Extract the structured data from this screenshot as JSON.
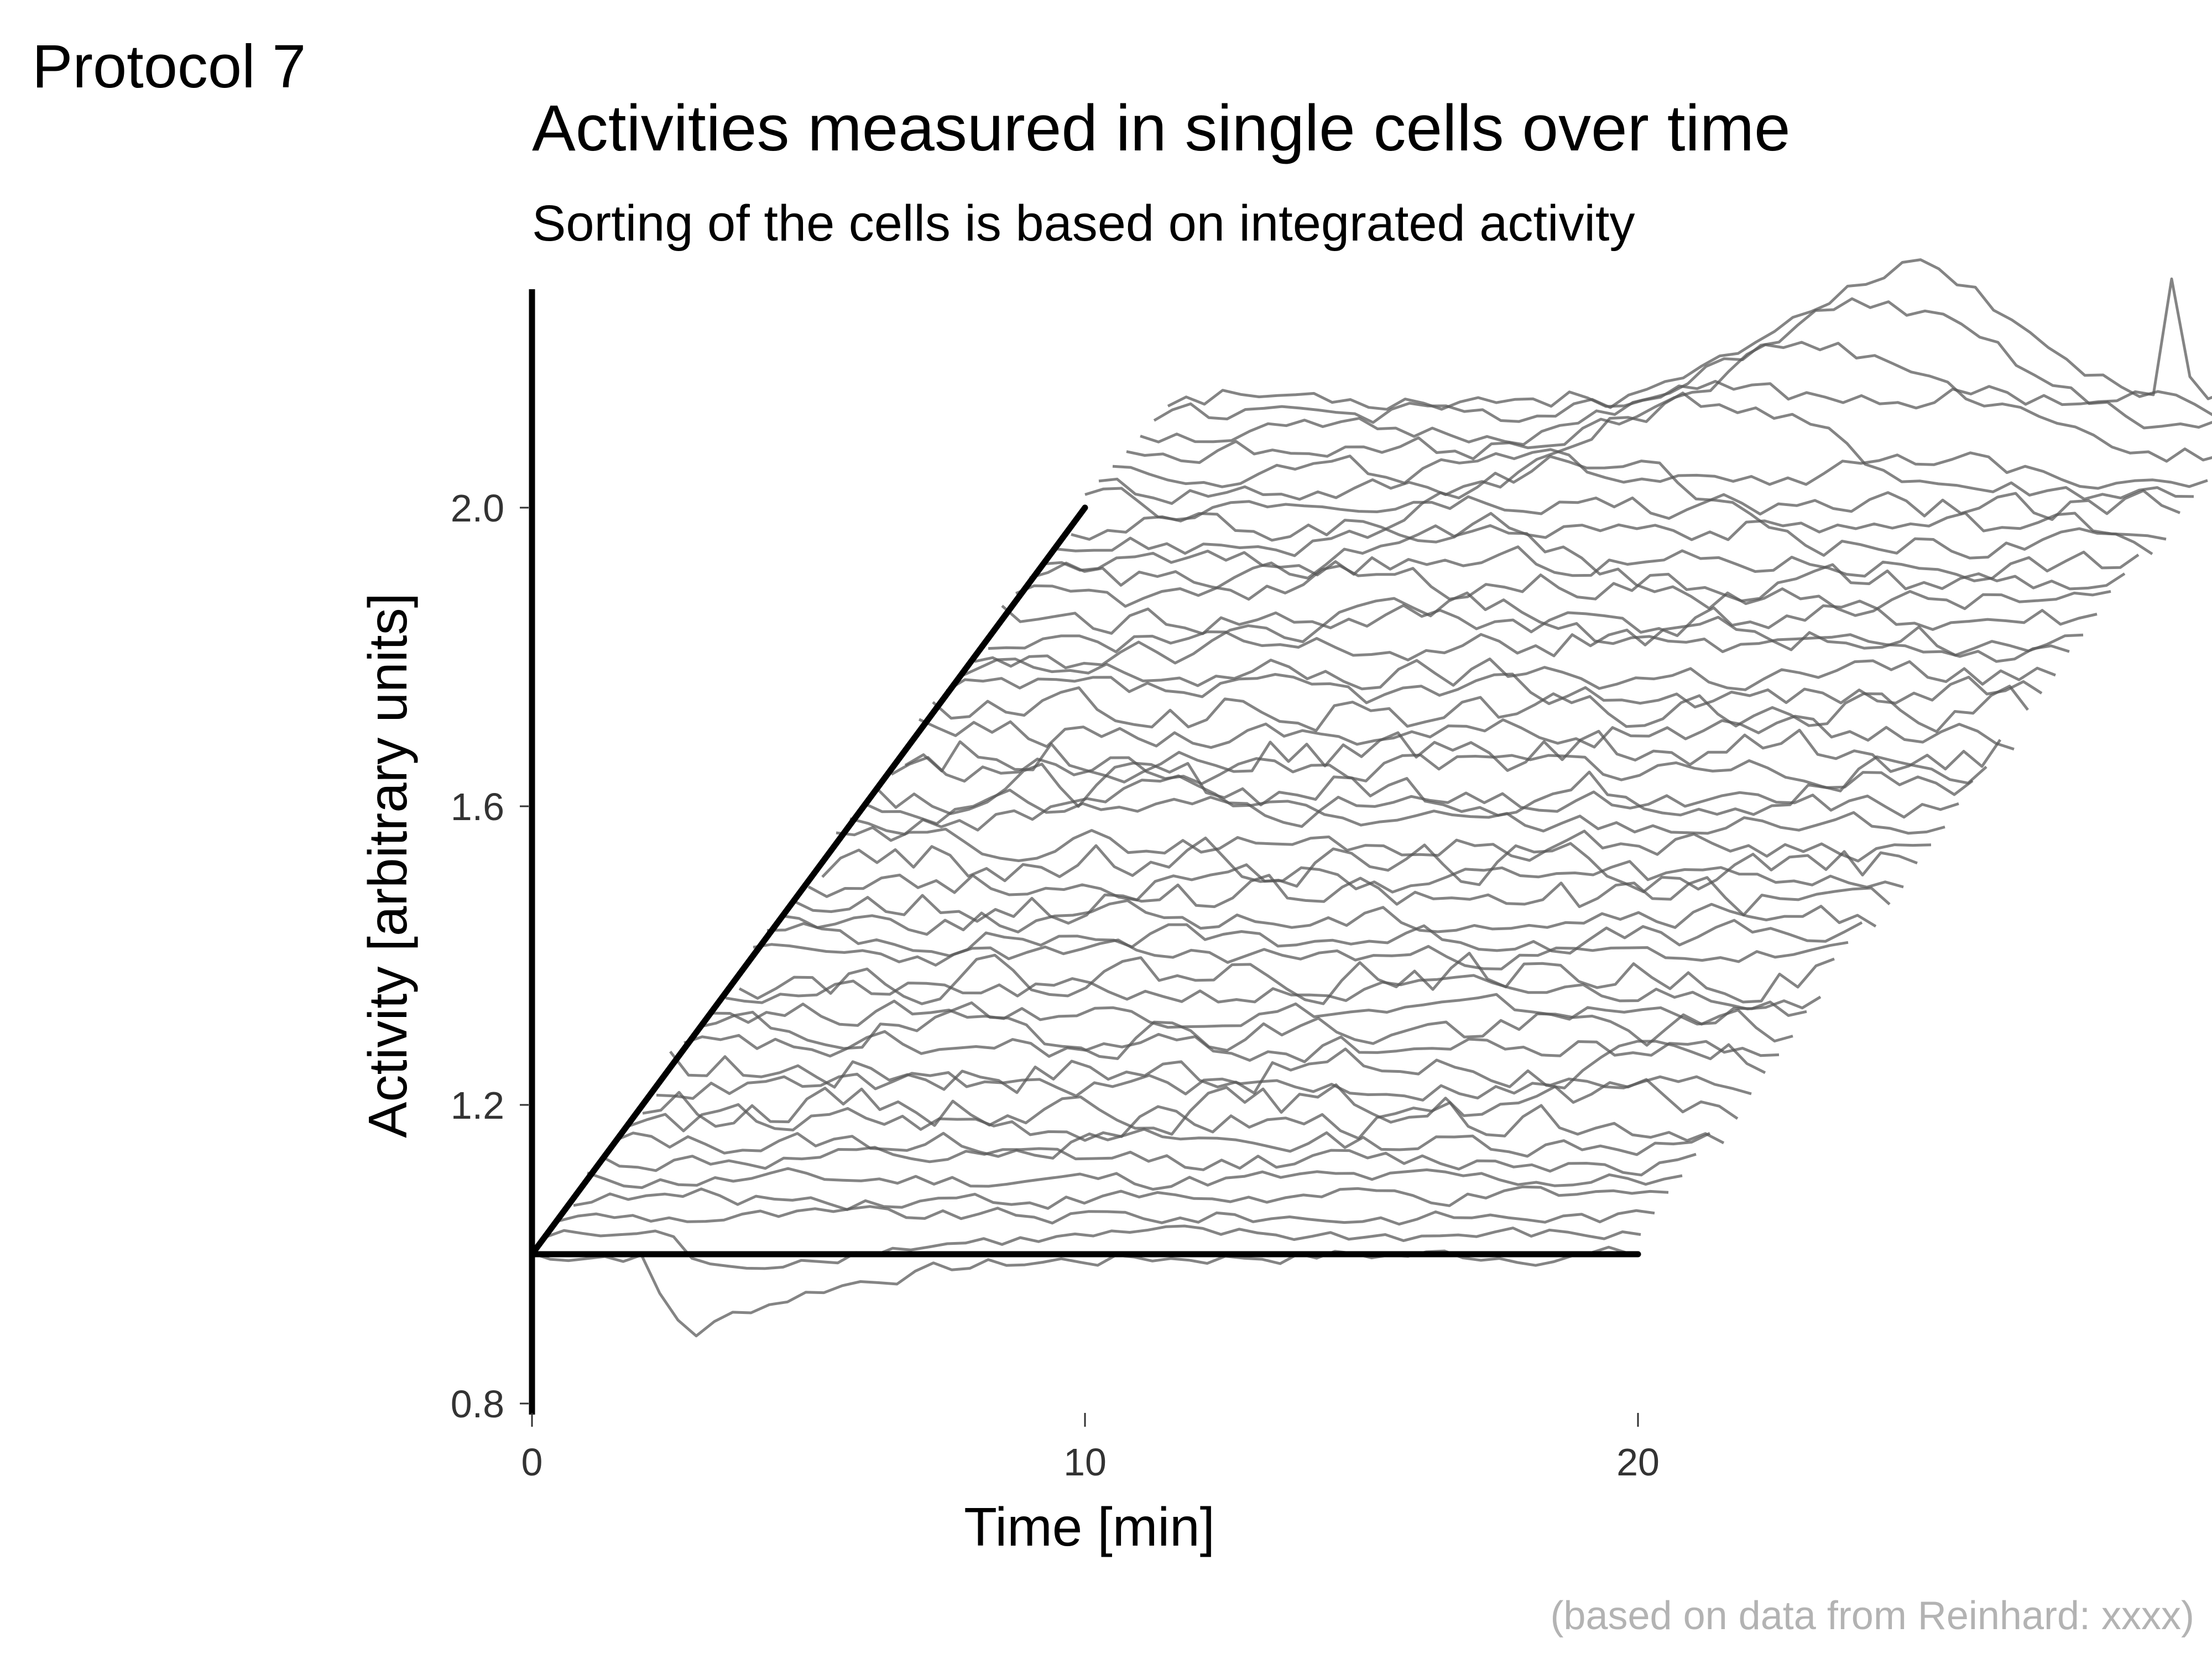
{
  "tag": "Protocol 7",
  "caption": "(based on data from Reinhard: xxxx)",
  "colors": {
    "trace": "#555555",
    "axis": "#000000",
    "caption": "#b3b3b3"
  },
  "chart_data": {
    "type": "line",
    "title": "Activities measured in single cells over time",
    "subtitle": "Sorting of the cells is based on integrated activity",
    "xlabel": "Time [min]",
    "ylabel": "Activity [arbitrary units]",
    "xlim": [
      0,
      30
    ],
    "ylim": [
      0.8,
      2.3
    ],
    "x_ticks": [
      0,
      10,
      20
    ],
    "x_tick_labels": [
      "0",
      "10",
      "20"
    ],
    "y_ticks": [
      0.8,
      1.2,
      1.6,
      2.0
    ],
    "y_tick_labels": [
      "0.8",
      "1.2",
      "1.6",
      "2.0"
    ],
    "grid": false,
    "legend": "none",
    "sample_interval_min": 0.33,
    "duration_min": 20,
    "vertical_offset_per_cell": 0.025,
    "horizontal_offset_per_cell_min": 0.25,
    "guides": [
      {
        "name": "baseline",
        "x": [
          0,
          20
        ],
        "y": [
          1.0,
          1.0
        ]
      },
      {
        "name": "offset-diagonal",
        "x": [
          0,
          10
        ],
        "y": [
          1.0,
          2.0
        ]
      }
    ],
    "series": [
      {
        "pattern": "dip",
        "baseline": 1.0,
        "event_t": 2.2,
        "event_amp": -0.14,
        "event_width": 0.9,
        "noise": 0.006
      },
      {
        "pattern": "dip",
        "baseline": 1.0,
        "event_t": 2.5,
        "event_amp": -0.07,
        "event_width": 0.8,
        "noise": 0.006
      },
      {
        "pattern": "flat",
        "baseline": 1.0,
        "noise": 0.006
      },
      {
        "pattern": "flat",
        "baseline": 1.0,
        "noise": 0.007
      },
      {
        "pattern": "flat",
        "baseline": 1.0,
        "noise": 0.007
      },
      {
        "pattern": "flat",
        "baseline": 1.0,
        "noise": 0.008
      },
      {
        "pattern": "flat",
        "baseline": 1.0,
        "noise": 0.009
      },
      {
        "pattern": "noisy",
        "baseline": 1.0,
        "noise": 0.012
      },
      {
        "pattern": "noisy",
        "baseline": 1.0,
        "noise": 0.014
      },
      {
        "pattern": "flat",
        "baseline": 1.0,
        "noise": 0.009
      },
      {
        "pattern": "noisy",
        "baseline": 1.0,
        "noise": 0.016
      },
      {
        "pattern": "flat",
        "baseline": 1.0,
        "noise": 0.01
      },
      {
        "pattern": "noisy",
        "baseline": 1.0,
        "noise": 0.014
      },
      {
        "pattern": "flat",
        "baseline": 1.0,
        "noise": 0.009
      },
      {
        "pattern": "flat",
        "baseline": 1.0,
        "noise": 0.009
      },
      {
        "pattern": "noisy",
        "baseline": 1.0,
        "noise": 0.015
      },
      {
        "pattern": "flat",
        "baseline": 1.0,
        "noise": 0.008
      },
      {
        "pattern": "flat",
        "baseline": 1.0,
        "noise": 0.01
      },
      {
        "pattern": "flat",
        "baseline": 1.0,
        "noise": 0.01
      },
      {
        "pattern": "noisy",
        "baseline": 1.0,
        "noise": 0.015
      },
      {
        "pattern": "flat",
        "baseline": 1.0,
        "noise": 0.011
      },
      {
        "pattern": "noisy",
        "baseline": 1.0,
        "noise": 0.016
      },
      {
        "pattern": "flat",
        "baseline": 1.0,
        "noise": 0.01
      },
      {
        "pattern": "bump",
        "baseline": 1.0,
        "event_t": 6.0,
        "event_amp": 0.05,
        "event_width": 1.6,
        "noise": 0.009
      },
      {
        "pattern": "flat",
        "baseline": 1.0,
        "noise": 0.01
      },
      {
        "pattern": "noisy",
        "baseline": 1.0,
        "noise": 0.016
      },
      {
        "pattern": "flat",
        "baseline": 1.0,
        "noise": 0.011
      },
      {
        "pattern": "noisy",
        "baseline": 1.0,
        "noise": 0.017
      },
      {
        "pattern": "flat",
        "baseline": 1.0,
        "noise": 0.011
      },
      {
        "pattern": "noisy",
        "baseline": 1.0,
        "noise": 0.015
      },
      {
        "pattern": "flat",
        "baseline": 1.0,
        "noise": 0.011
      },
      {
        "pattern": "flat",
        "baseline": 1.0,
        "noise": 0.012
      },
      {
        "pattern": "bump",
        "baseline": 1.0,
        "event_t": 8.5,
        "event_amp": 0.07,
        "event_width": 2.2,
        "noise": 0.01
      },
      {
        "pattern": "flat",
        "baseline": 1.0,
        "noise": 0.012
      },
      {
        "pattern": "flat",
        "baseline": 1.0,
        "noise": 0.012
      },
      {
        "pattern": "bump",
        "baseline": 1.0,
        "event_t": 8.0,
        "event_amp": 0.1,
        "event_width": 2.0,
        "noise": 0.01
      },
      {
        "pattern": "flat",
        "baseline": 1.0,
        "noise": 0.012
      },
      {
        "pattern": "spike",
        "baseline": 1.0,
        "event_t": 20.5,
        "event_amp": 0.12,
        "event_width": 0.15,
        "noise": 0.01
      },
      {
        "pattern": "bump",
        "baseline": 1.0,
        "event_t": 9.5,
        "event_amp": 0.11,
        "event_width": 2.0,
        "noise": 0.01
      },
      {
        "pattern": "spike",
        "baseline": 1.0,
        "event_t": 20.2,
        "event_amp": 0.18,
        "event_width": 0.12,
        "noise": 0.01
      },
      {
        "pattern": "flat",
        "baseline": 1.0,
        "noise": 0.011
      },
      {
        "pattern": "bump",
        "baseline": 1.0,
        "event_t": 11.0,
        "event_amp": 0.12,
        "event_width": 2.0,
        "noise": 0.01
      },
      {
        "pattern": "spike",
        "baseline": 1.0,
        "event_t": 21.2,
        "event_amp": 0.14,
        "event_width": 0.12,
        "noise": 0.01
      },
      {
        "pattern": "bump",
        "baseline": 1.0,
        "event_t": 12.5,
        "event_amp": 0.14,
        "event_width": 2.4,
        "noise": 0.009
      },
      {
        "pattern": "bump",
        "baseline": 1.0,
        "event_t": 13.2,
        "event_amp": 0.17,
        "event_width": 2.3,
        "noise": 0.008
      },
      {
        "pattern": "bump",
        "baseline": 1.0,
        "event_t": 13.5,
        "event_amp": 0.2,
        "event_width": 2.2,
        "noise": 0.008
      },
      {
        "pattern": "spike",
        "baseline": 1.0,
        "event_t": 18.2,
        "event_amp": 0.16,
        "event_width": 0.12,
        "noise": 0.009
      }
    ]
  }
}
